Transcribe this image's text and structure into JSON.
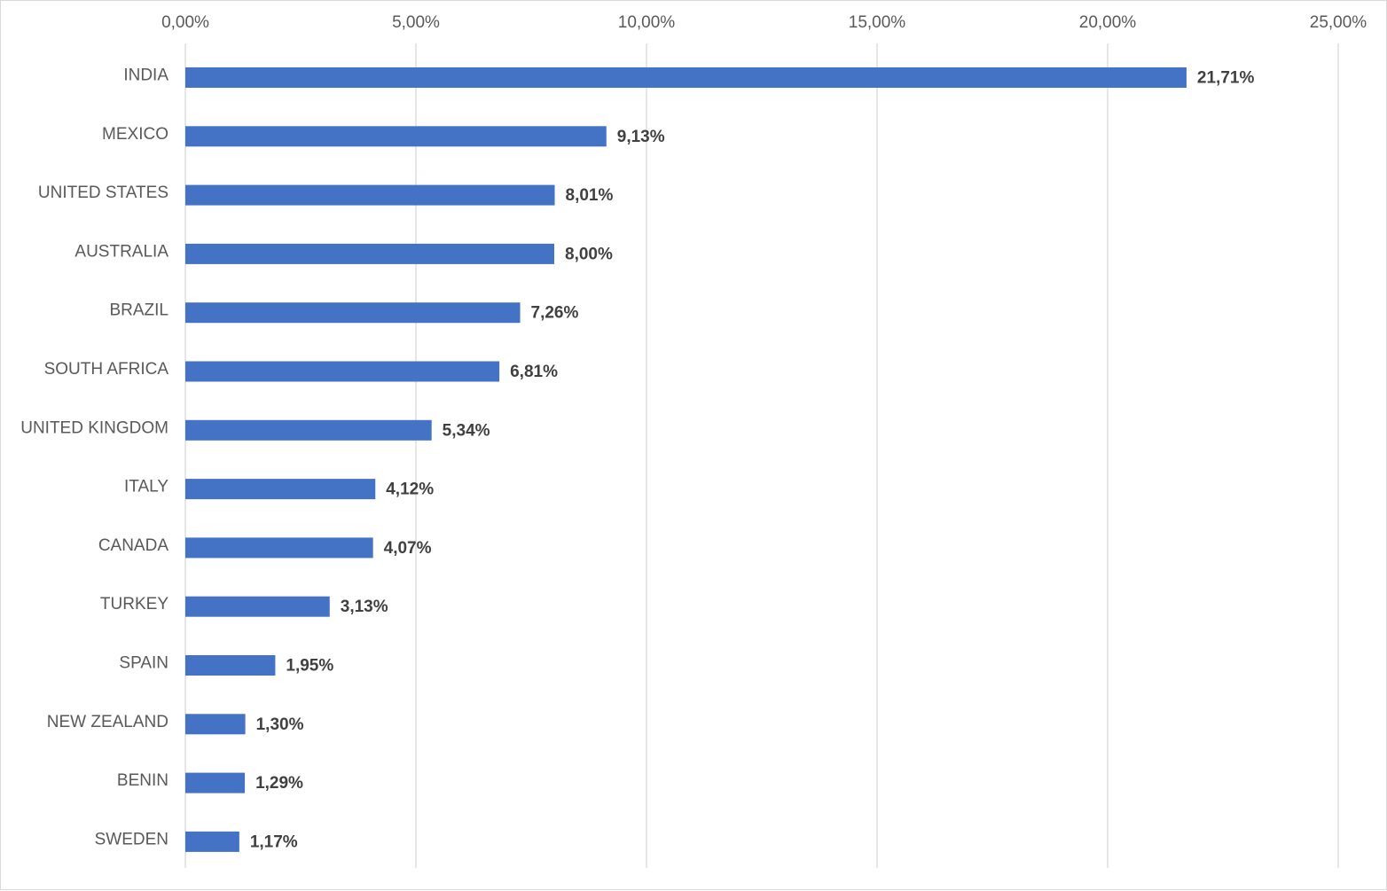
{
  "chart_data": {
    "type": "bar",
    "orientation": "horizontal",
    "title": "",
    "xlabel": "",
    "ylabel": "",
    "xlim": [
      0,
      25
    ],
    "x_ticks": [
      "0,00%",
      "5,00%",
      "10,00%",
      "15,00%",
      "20,00%",
      "25,00%"
    ],
    "x_tick_values": [
      0,
      5,
      10,
      15,
      20,
      25
    ],
    "x_axis_position": "top",
    "grid": true,
    "legend": "none",
    "categories": [
      "INDIA",
      "MEXICO",
      "UNITED STATES",
      "AUSTRALIA",
      "BRAZIL",
      "SOUTH AFRICA",
      "UNITED KINGDOM",
      "ITALY",
      "CANADA",
      "TURKEY",
      "SPAIN",
      "NEW ZEALAND",
      "BENIN",
      "SWEDEN"
    ],
    "values": [
      21.71,
      9.13,
      8.01,
      8.0,
      7.26,
      6.81,
      5.34,
      4.12,
      4.07,
      3.13,
      1.95,
      1.3,
      1.29,
      1.17
    ],
    "data_labels": [
      "21,71%",
      "9,13%",
      "8,01%",
      "8,00%",
      "7,26%",
      "6,81%",
      "5,34%",
      "4,12%",
      "4,07%",
      "3,13%",
      "1,95%",
      "1,30%",
      "1,29%",
      "1,17%"
    ],
    "bar_color": "#4472C4"
  }
}
